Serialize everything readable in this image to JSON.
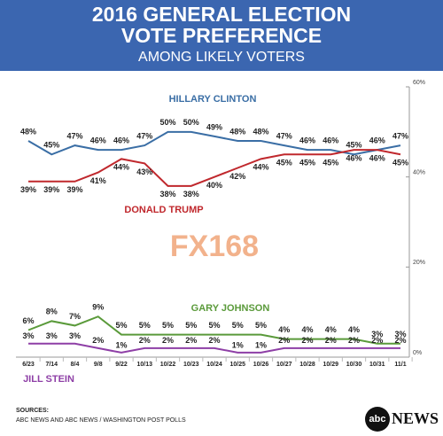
{
  "chart_data": {
    "type": "line",
    "title": [
      "2016 GENERAL ELECTION",
      "VOTE PREFERENCE"
    ],
    "subtitle": "AMONG LIKELY VOTERS",
    "categories": [
      "6/23",
      "7/14",
      "8/4",
      "9/8",
      "9/22",
      "10/13",
      "10/22",
      "10/23",
      "10/24",
      "10/25",
      "10/26",
      "10/27",
      "10/28",
      "10/29",
      "10/30",
      "10/31",
      "11/1"
    ],
    "series": [
      {
        "name": "HILLARY CLINTON",
        "color": "#3a6ea5",
        "values": [
          48,
          45,
          47,
          46,
          46,
          47,
          50,
          50,
          49,
          48,
          48,
          47,
          46,
          46,
          45,
          46,
          47
        ],
        "value_labels": [
          "48%",
          "45%",
          "47%",
          "46%",
          "46%",
          "47%",
          "50%",
          "50%",
          "49%",
          "48%",
          "48%",
          "47%",
          "46%",
          "46%",
          "45%",
          "46%",
          "47%"
        ]
      },
      {
        "name": "DONALD TRUMP",
        "color": "#c0282d",
        "values": [
          39,
          39,
          39,
          41,
          44,
          43,
          38,
          38,
          40,
          42,
          44,
          45,
          45,
          45,
          46,
          46,
          45
        ],
        "value_labels": [
          "39%",
          "39%",
          "39%",
          "41%",
          "44%",
          "43%",
          "38%",
          "38%",
          "40%",
          "42%",
          "44%",
          "45%",
          "45%",
          "45%",
          "46%",
          "46%",
          "45%"
        ]
      },
      {
        "name": "GARY JOHNSON",
        "color": "#5a9a3a",
        "values": [
          6,
          8,
          7,
          9,
          5,
          5,
          5,
          5,
          5,
          5,
          5,
          4,
          4,
          4,
          4,
          3,
          3
        ],
        "value_labels": [
          "6%",
          "8%",
          "7%",
          "9%",
          "5%",
          "5%",
          "5%",
          "5%",
          "5%",
          "5%",
          "5%",
          "4%",
          "4%",
          "4%",
          "4%",
          "3%",
          "3%"
        ]
      },
      {
        "name": "JILL STEIN",
        "color": "#8e3fa6",
        "values": [
          3,
          3,
          3,
          2,
          1,
          2,
          2,
          2,
          2,
          1,
          1,
          2,
          2,
          2,
          2,
          2,
          2
        ],
        "value_labels": [
          "3%",
          "3%",
          "3%",
          "2%",
          "1%",
          "2%",
          "2%",
          "2%",
          "2%",
          "1%",
          "1%",
          "2%",
          "2%",
          "2%",
          "2%",
          "2%",
          "2%"
        ]
      }
    ],
    "ylim": [
      0,
      60
    ],
    "yticks": [
      {
        "value": 0,
        "label": "0%"
      },
      {
        "value": 20,
        "label": "20%"
      },
      {
        "value": 40,
        "label": "40%"
      },
      {
        "value": 60,
        "label": "60%"
      }
    ],
    "watermark": "FX168",
    "source_heading": "SOURCES:",
    "source": "ABC NEWS AND ABC NEWS / WASHINGTON POST POLLS",
    "logo_mark": "abc",
    "logo_text": "NEWS"
  }
}
